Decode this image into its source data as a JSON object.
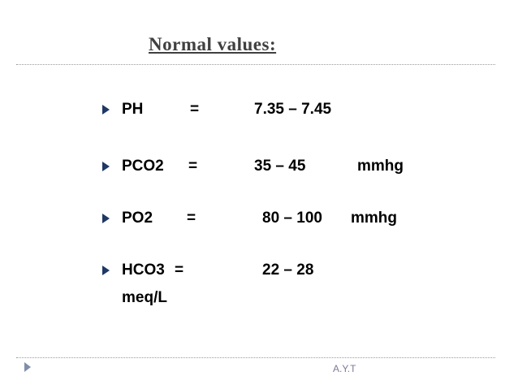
{
  "slide": {
    "title": "Normal values:",
    "items": [
      {
        "label": "PH",
        "eq": "=",
        "range": "7.35 – 7.45"
      },
      {
        "label": "PCO2",
        "eq": "=",
        "range": "35 – 45",
        "unit": "mmhg"
      },
      {
        "label": "PO2",
        "eq": "=",
        "range": "80 – 100",
        "unit": "mmhg"
      },
      {
        "label": "HCO3",
        "eq": "=",
        "range": "22 – 28",
        "unit": "meq/L"
      }
    ],
    "footer": "A.Y.T"
  }
}
